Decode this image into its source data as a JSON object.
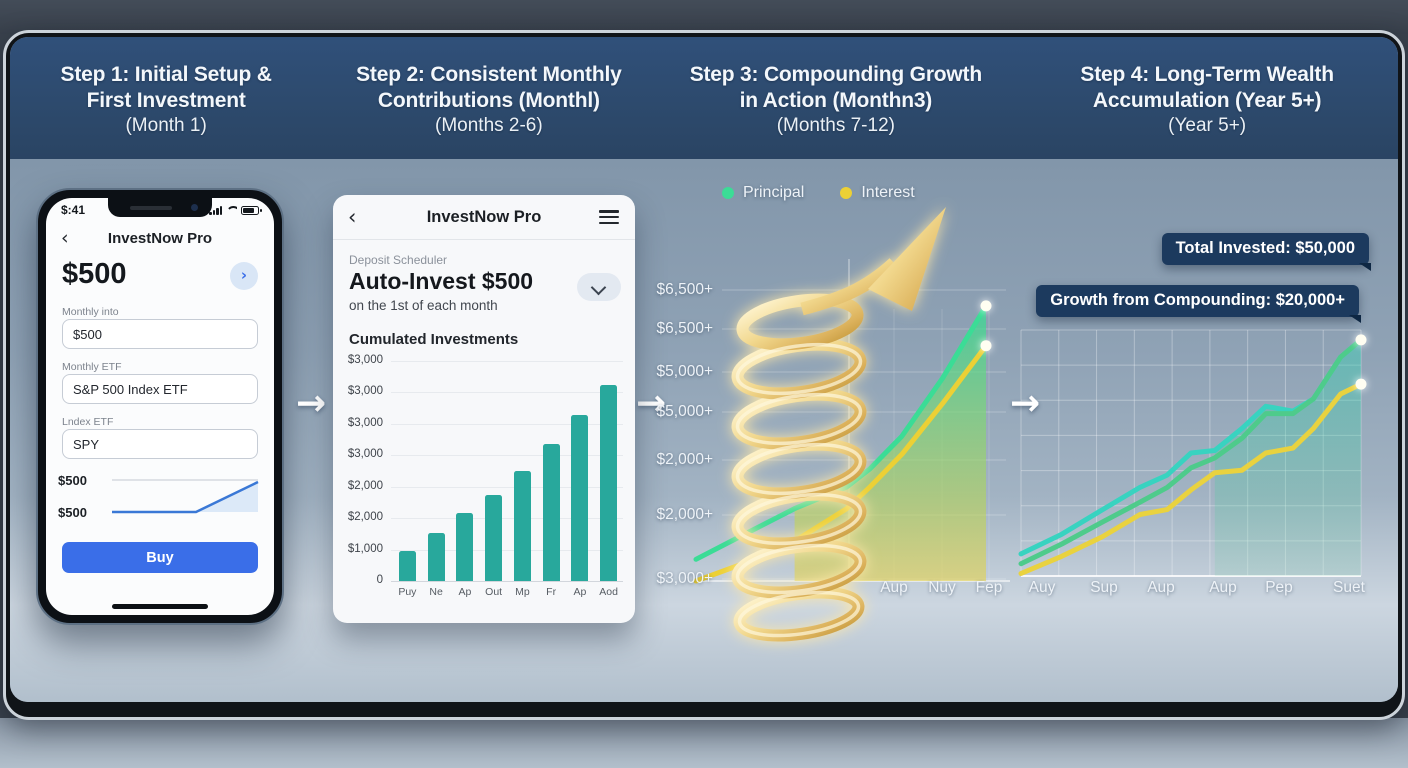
{
  "banner": {
    "steps": [
      {
        "lines": [
          "Step 1: Initial Setup &",
          "First Investment",
          "(Month 1)"
        ]
      },
      {
        "lines": [
          "Step 2: Consistent Monthly",
          "Contributions (Monthl)",
          "(Months 2-6)"
        ]
      },
      {
        "lines": [
          "Step 3: Compounding Growth",
          "in Action (Monthn3)",
          "(Months 7-12)"
        ]
      },
      {
        "lines": [
          "Step 4: Long-Term Wealth",
          "Accumulation (Year 5+)",
          "(Year 5+)"
        ]
      }
    ]
  },
  "arrow_glyph": "→",
  "phone": {
    "status_time": "$:41",
    "back_glyph": "‹",
    "app_title": "InvestNow Pro",
    "amount": "$500",
    "amount_button_glyph": "›",
    "fields": [
      {
        "label": "Monthly into",
        "value": "$500"
      },
      {
        "label": "Monthly ETF",
        "value": "S&P 500 Index ETF"
      },
      {
        "label": "Lndex ETF",
        "value": "SPY"
      }
    ],
    "spark_top_label": "$500",
    "spark_bottom_label": "$500",
    "buy_label": "Buy"
  },
  "card": {
    "back_glyph": "‹",
    "app_title": "InvestNow Pro",
    "scheduler_label": "Deposit Scheduler",
    "title": "Auto-Invest $500",
    "subtitle": "on the 1st of each month",
    "chart_title": "Cumulated Investments"
  },
  "step4": {
    "badges": [
      "Total Invested: $50,000",
      "Growth from Compounding: $20,000+"
    ]
  },
  "chart_data": [
    {
      "type": "bar",
      "title": "Cumulated Investments",
      "categories": [
        "Puy",
        "Ne",
        "Ap",
        "Out",
        "Mp",
        "Fr",
        "Ap",
        "Aod"
      ],
      "values": [
        500,
        800,
        1150,
        1450,
        1850,
        2300,
        2800,
        3300
      ],
      "ymax": 3700,
      "y_tick_labels": [
        "$3,000",
        "$3,000",
        "$3,000",
        "$3,000",
        "$2,000",
        "$2,000",
        "$1,000",
        "0"
      ],
      "bar_color": "#28a89c"
    },
    {
      "type": "line",
      "title": "Compounding Growth in Action",
      "legend_position": "top",
      "y_tick_labels": [
        "$6,500+",
        "$6,500+",
        "$5,000+",
        "$5,000+",
        "$2,000+",
        "$2,000+",
        "$3,000+"
      ],
      "x_tick_labels": [
        "Aup",
        "Nuy",
        "Fep"
      ],
      "series": [
        {
          "name": "Principal",
          "color": "#3bdc96",
          "end_dot": true,
          "points": [
            [
              0,
              0.06
            ],
            [
              0.17,
              0.13
            ],
            [
              0.34,
              0.2
            ],
            [
              0.52,
              0.26
            ],
            [
              0.6,
              0.31
            ],
            [
              0.71,
              0.4
            ],
            [
              0.85,
              0.56
            ],
            [
              1,
              0.76
            ]
          ]
        },
        {
          "name": "Interest",
          "color": "#ecd035",
          "end_dot": true,
          "points": [
            [
              0,
              0.0
            ],
            [
              0.17,
              0.05
            ],
            [
              0.34,
              0.11
            ],
            [
              0.52,
              0.2
            ],
            [
              0.6,
              0.26
            ],
            [
              0.71,
              0.35
            ],
            [
              0.85,
              0.49
            ],
            [
              1,
              0.65
            ]
          ]
        }
      ]
    },
    {
      "type": "line",
      "title": "Long-Term Wealth Accumulation",
      "x_tick_labels": [
        "Auy",
        "Sup",
        "Aup",
        "Aup",
        "Pep",
        "Suet"
      ],
      "annotations": [
        "Total Invested: $50,000",
        "Growth from Compounding: $20,000+"
      ],
      "series": [
        {
          "name": "Principal",
          "color": "#38d3c0",
          "end_dot": true,
          "points": [
            [
              0,
              0.09
            ],
            [
              0.12,
              0.17
            ],
            [
              0.24,
              0.27
            ],
            [
              0.35,
              0.36
            ],
            [
              0.43,
              0.41
            ],
            [
              0.5,
              0.5
            ],
            [
              0.57,
              0.51
            ],
            [
              0.65,
              0.6
            ],
            [
              0.72,
              0.69
            ],
            [
              0.8,
              0.67
            ],
            [
              0.86,
              0.72
            ],
            [
              0.94,
              0.89
            ],
            [
              1,
              0.96
            ]
          ]
        },
        {
          "name": "Principal (secondary)",
          "color": "#4ecb8b",
          "end_dot": false,
          "points": [
            [
              0,
              0.05
            ],
            [
              0.12,
              0.13
            ],
            [
              0.24,
              0.22
            ],
            [
              0.35,
              0.3
            ],
            [
              0.43,
              0.36
            ],
            [
              0.5,
              0.44
            ],
            [
              0.57,
              0.48
            ],
            [
              0.65,
              0.56
            ],
            [
              0.72,
              0.66
            ],
            [
              0.8,
              0.66
            ],
            [
              0.86,
              0.72
            ],
            [
              0.94,
              0.89
            ],
            [
              1,
              0.96
            ]
          ]
        },
        {
          "name": "Interest",
          "color": "#e9d23f",
          "end_dot": true,
          "points": [
            [
              0,
              0.01
            ],
            [
              0.12,
              0.08
            ],
            [
              0.24,
              0.16
            ],
            [
              0.35,
              0.25
            ],
            [
              0.43,
              0.27
            ],
            [
              0.5,
              0.35
            ],
            [
              0.57,
              0.42
            ],
            [
              0.65,
              0.43
            ],
            [
              0.72,
              0.5
            ],
            [
              0.8,
              0.52
            ],
            [
              0.86,
              0.6
            ],
            [
              0.94,
              0.74
            ],
            [
              1,
              0.78
            ]
          ]
        }
      ]
    }
  ]
}
